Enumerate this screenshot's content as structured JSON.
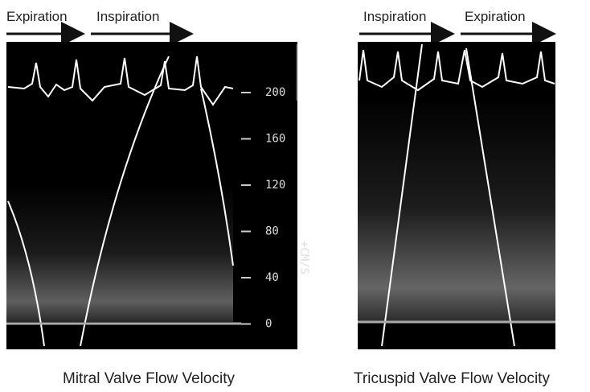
{
  "panels": [
    {
      "phases": [
        "Expiration",
        "Inspiration"
      ],
      "scale": {
        "ticks": [
          "200",
          "160",
          "120",
          "80",
          "40",
          "0"
        ],
        "unit": "+CM/S"
      },
      "caption": "Mitral Valve Flow Velocity"
    },
    {
      "phases": [
        "Inspiration",
        "Expiration"
      ],
      "caption": "Tricuspid Valve Flow Velocity"
    }
  ]
}
